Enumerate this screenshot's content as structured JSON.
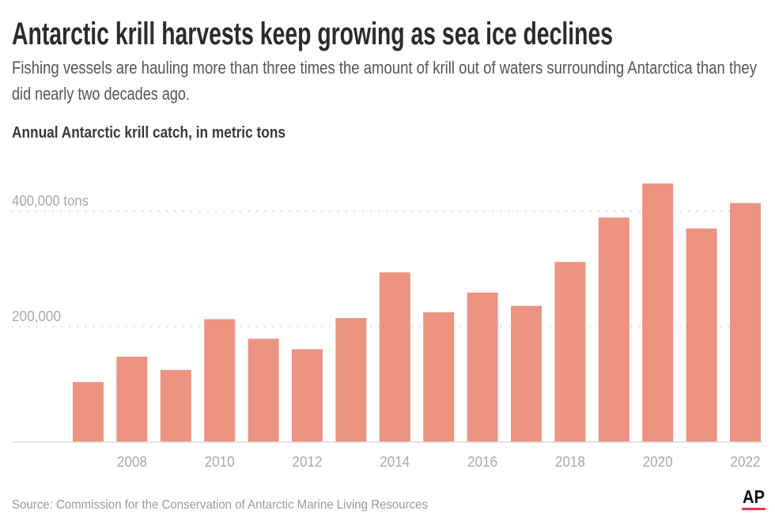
{
  "title": "Antarctic krill harvests keep growing as sea ice declines",
  "subtitle_line1": "Fishing vessels are hauling more than three times the amount of krill out of waters surrounding Antarctica than they",
  "subtitle_line2": "did nearly two decades ago.",
  "source": "Source: Commission for the Conservation of Antarctic Marine Living Resources",
  "logo_text": "AP",
  "colors": {
    "bar": "#ec9382",
    "logo_red": "#e8344e"
  },
  "chart_data": {
    "type": "bar",
    "title": "Annual Antarctic krill catch, in metric tons",
    "xlabel": "",
    "ylabel": "",
    "categories": [
      "2007",
      "2008",
      "2009",
      "2010",
      "2011",
      "2012",
      "2013",
      "2014",
      "2015",
      "2016",
      "2017",
      "2018",
      "2019",
      "2020",
      "2021",
      "2022"
    ],
    "values": [
      104000,
      148000,
      125000,
      213000,
      179000,
      161000,
      215000,
      294000,
      225000,
      259000,
      236000,
      312000,
      389000,
      448000,
      370000,
      414000
    ],
    "ylim": [
      0,
      450000
    ],
    "y_ticks": [
      {
        "value": 200000,
        "label": "200,000"
      },
      {
        "value": 400000,
        "label": "400,000 tons"
      }
    ],
    "x_tick_labels": [
      "2008",
      "2010",
      "2012",
      "2014",
      "2016",
      "2018",
      "2020",
      "2022"
    ],
    "grid": true,
    "legend": "none"
  }
}
